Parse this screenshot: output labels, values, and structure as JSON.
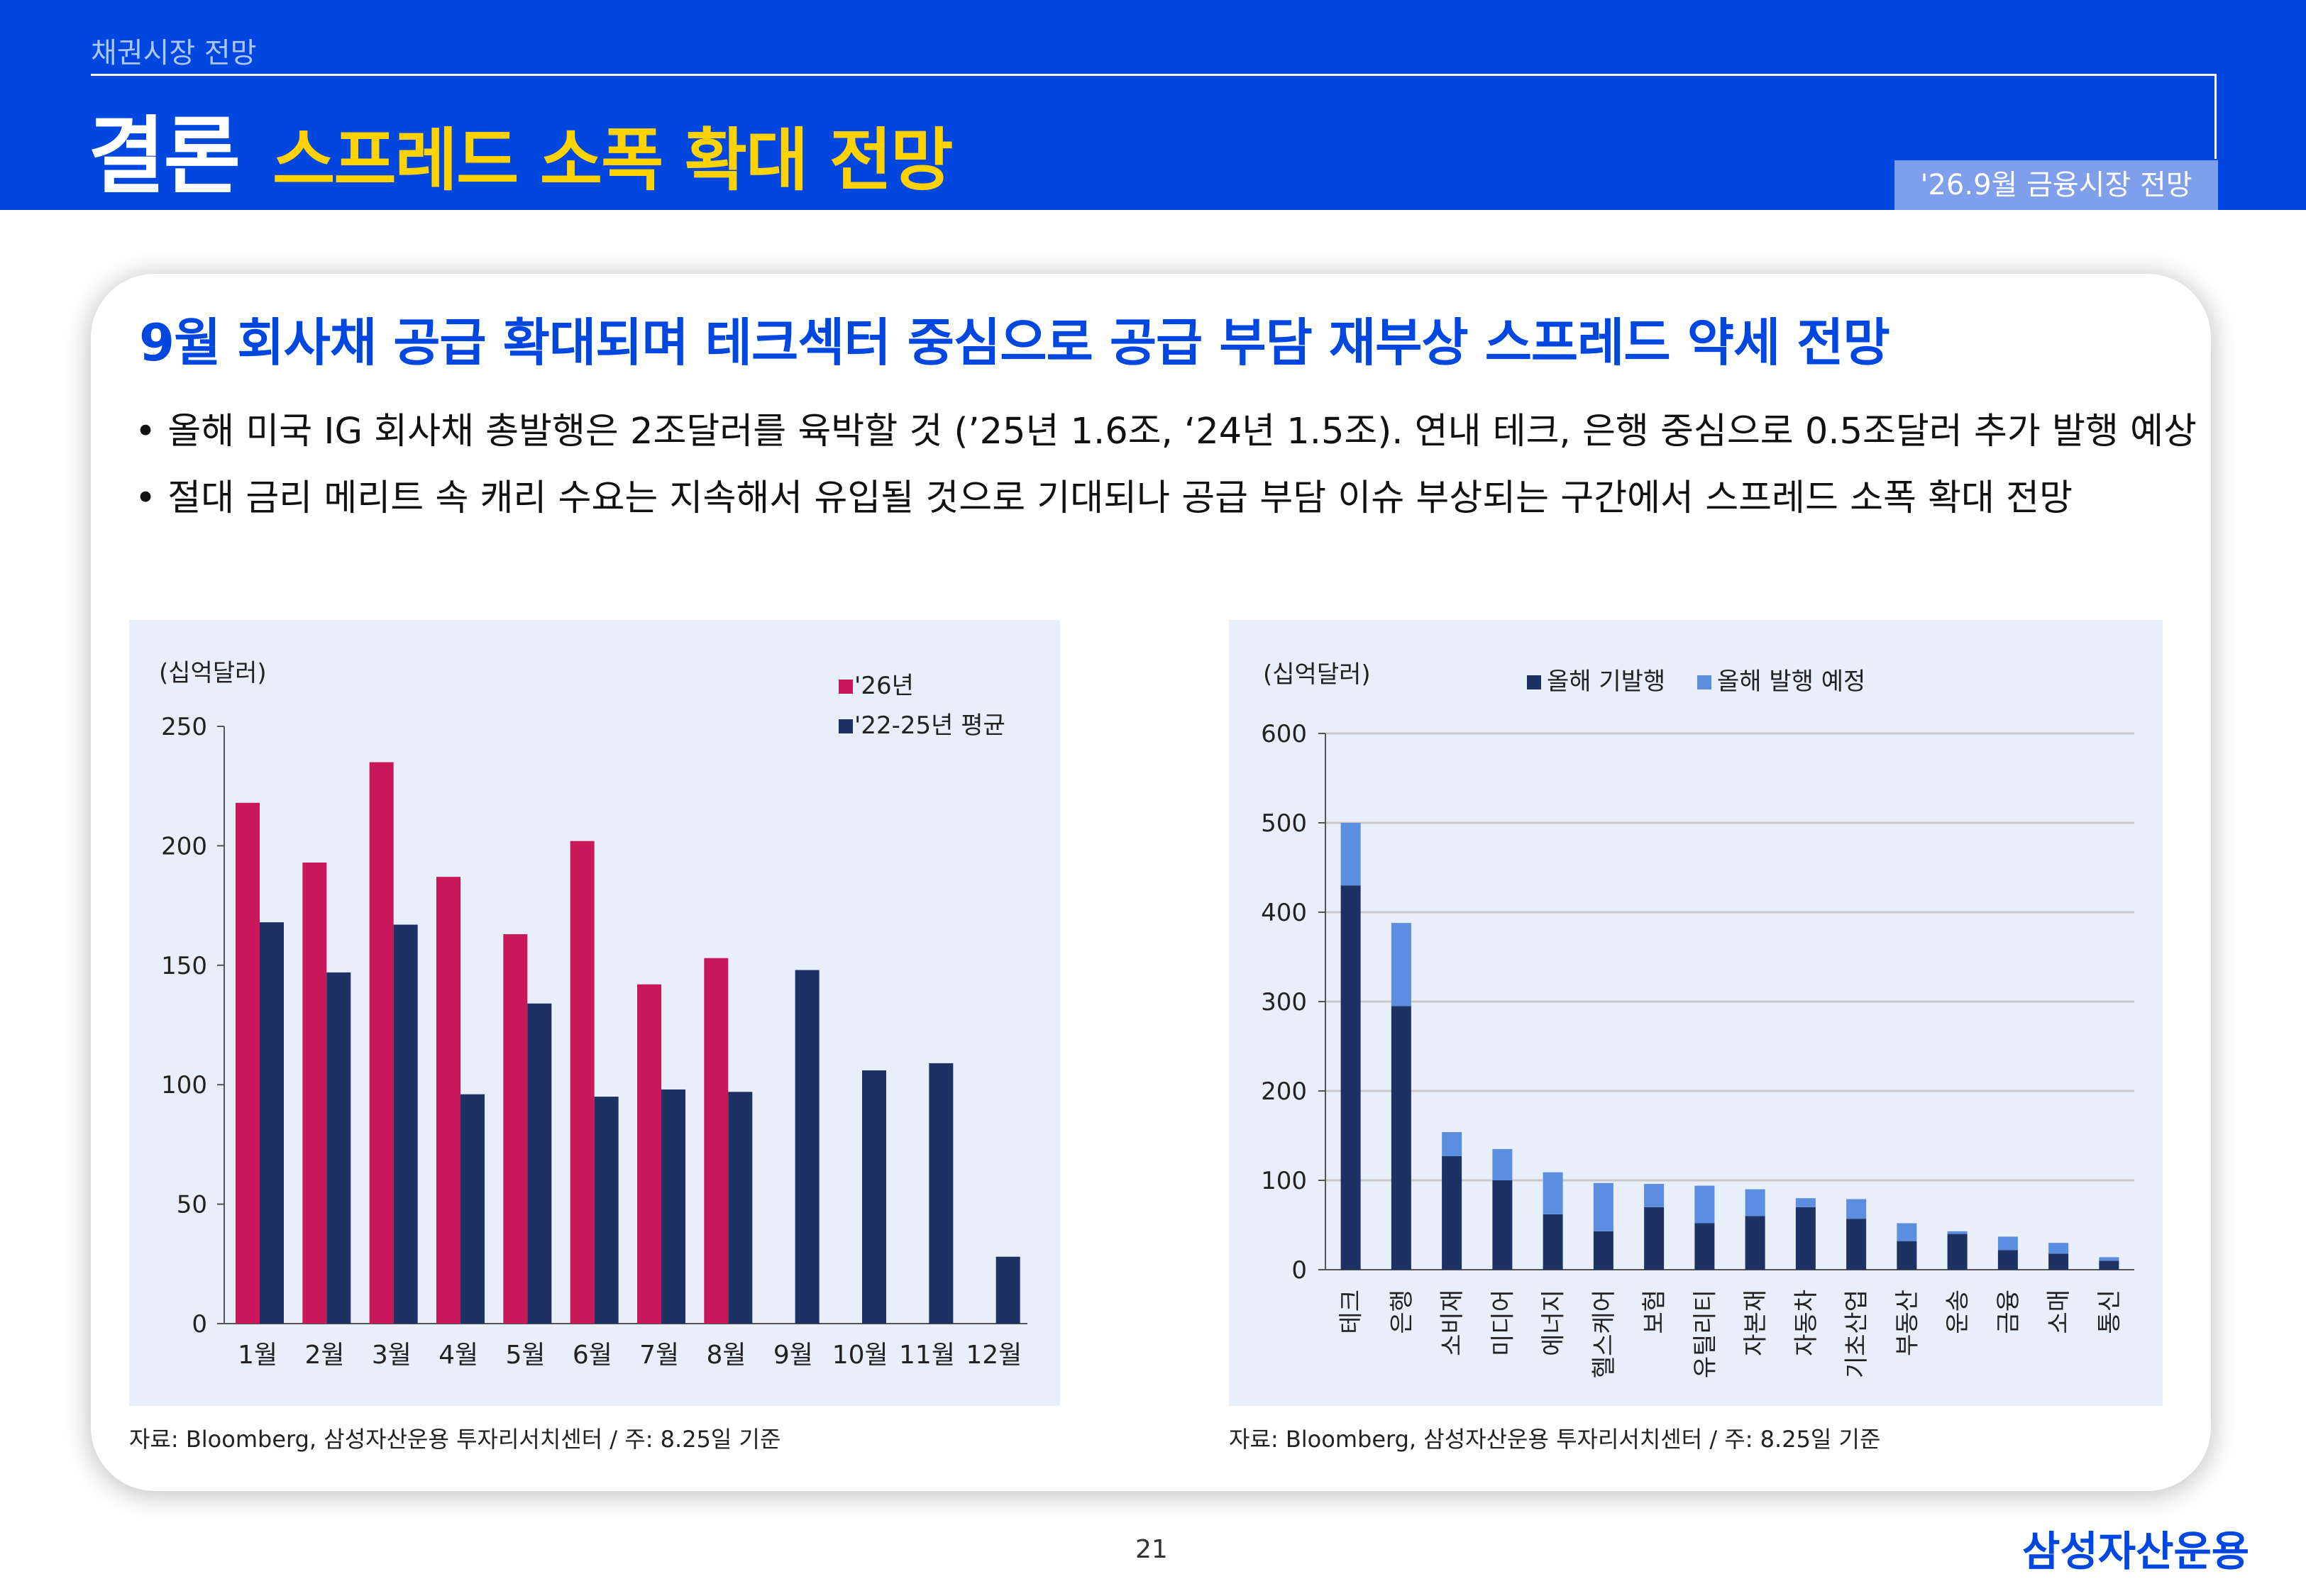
{
  "header": {
    "section": "채권시장 전망",
    "title": "결론",
    "subtitle": "스프레드 소폭 확대 전망",
    "date_tag": "'26.9월 금융시장 전망"
  },
  "card": {
    "headline": "9월 회사채 공급 확대되며 테크섹터 중심으로 공급 부담 재부상 스프레드 약세 전망",
    "bullets": [
      "• 올해 미국 IG 회사채 총발행은 2조달러를 육박할 것 (’25년 1.6조, ‘24년 1.5조). 연내 테크, 은행 중심으로 0.5조달러 추가 발행 예상",
      "• 절대 금리 메리트 속 캐리 수요는 지속해서 유입될 것으로 기대되나 공급 부담 이슈 부상되는 구간에서 스프레드 소폭 확대 전망"
    ]
  },
  "footer": {
    "source_left": "자료: Bloomberg, 삼성자산운용 투자리서치센터 / 주: 8.25일 기준",
    "source_right": "자료: Bloomberg, 삼성자산운용 투자리서치센터 / 주: 8.25일 기준",
    "page": "21",
    "logo": "삼성자산운용"
  },
  "chart_data": [
    {
      "type": "bar",
      "unit_label": "(십억달러)",
      "categories": [
        "1월",
        "2월",
        "3월",
        "4월",
        "5월",
        "6월",
        "7월",
        "8월",
        "9월",
        "10월",
        "11월",
        "12월"
      ],
      "ylim": [
        0,
        250
      ],
      "yticks": [
        0,
        50,
        100,
        150,
        200,
        250
      ],
      "legend_position": "top-right",
      "series": [
        {
          "name": "'26년",
          "color": "#c8185a",
          "values": [
            218,
            193,
            235,
            187,
            163,
            202,
            142,
            153,
            null,
            null,
            null,
            null
          ]
        },
        {
          "name": "'22-25년 평균",
          "color": "#1e3163",
          "values": [
            168,
            147,
            167,
            96,
            134,
            95,
            98,
            97,
            148,
            106,
            109,
            28
          ]
        }
      ]
    },
    {
      "type": "bar",
      "stacked": true,
      "unit_label": "(십억달러)",
      "categories": [
        "테크",
        "은행",
        "소비재",
        "미디어",
        "에너지",
        "헬스케어",
        "보험",
        "유틸리티",
        "자본재",
        "자동차",
        "기초산업",
        "부동산",
        "운송",
        "금융",
        "소매",
        "통신"
      ],
      "ylim": [
        0,
        600
      ],
      "yticks": [
        0,
        100,
        200,
        300,
        400,
        500,
        600
      ],
      "grid": true,
      "legend_position": "top",
      "series": [
        {
          "name": "올해 기발행",
          "color": "#1e3163",
          "values": [
            430,
            295,
            127,
            100,
            62,
            43,
            70,
            52,
            60,
            70,
            57,
            32,
            40,
            22,
            18,
            10
          ]
        },
        {
          "name": "올해 발행 예정",
          "color": "#5b8de0",
          "values": [
            70,
            93,
            27,
            35,
            47,
            54,
            26,
            42,
            30,
            10,
            22,
            20,
            3,
            15,
            12,
            4
          ]
        }
      ]
    }
  ]
}
